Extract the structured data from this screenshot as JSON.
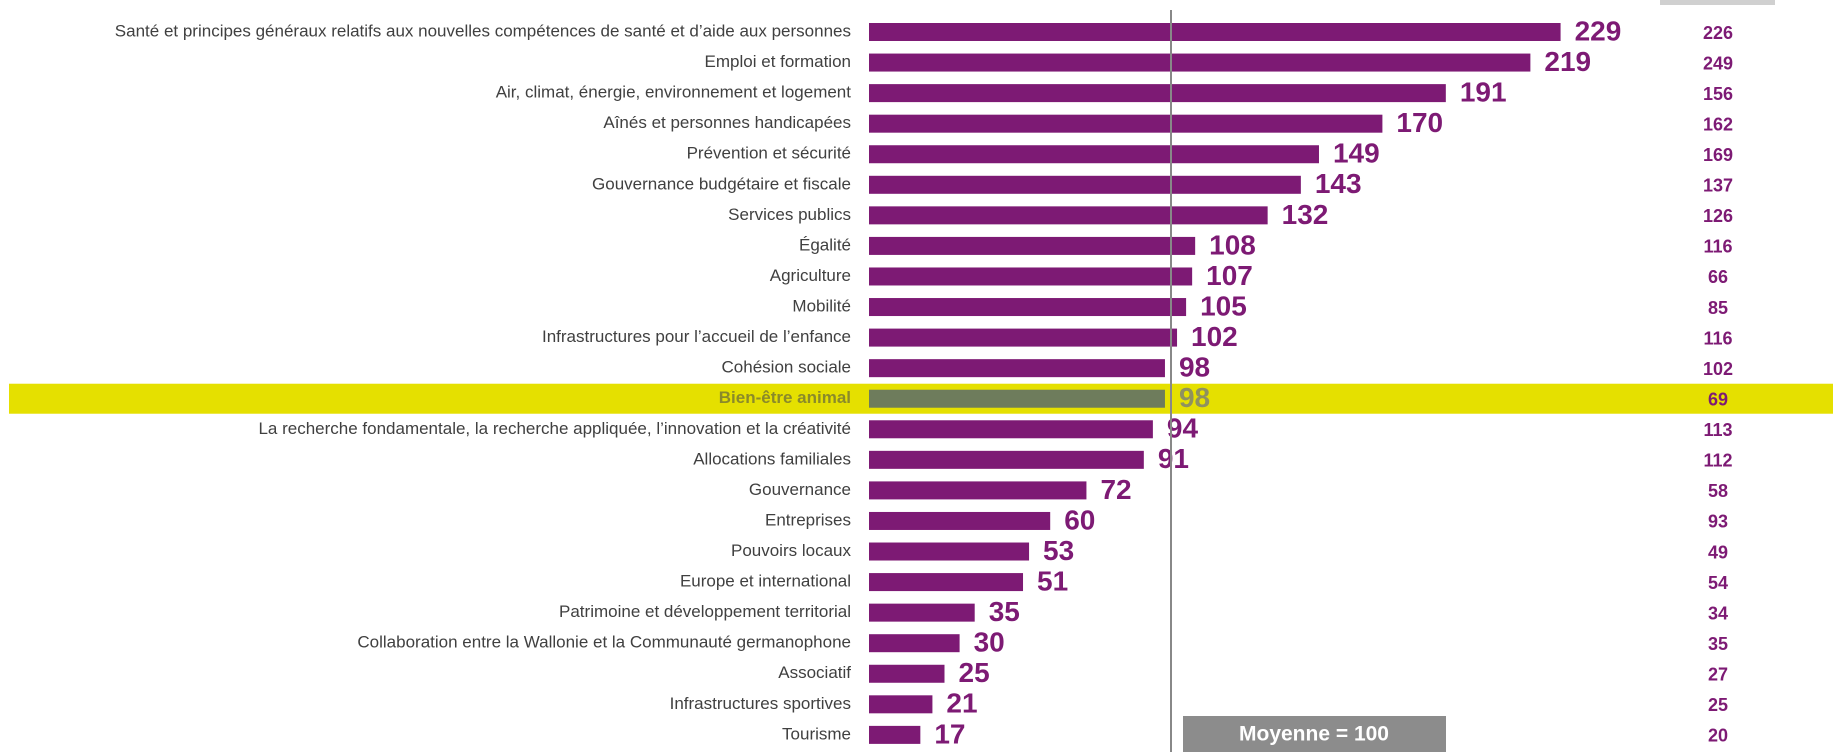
{
  "chart_data": {
    "type": "bar",
    "categories": [
      "Santé et principes généraux relatifs aux nouvelles compétences de santé et d’aide aux personnes",
      "Emploi et formation",
      "Air, climat, énergie, environnement et logement",
      "Aînés et personnes handicapées",
      "Prévention et sécurité",
      "Gouvernance budgétaire et fiscale",
      "Services publics",
      "Égalité",
      "Agriculture",
      "Mobilité",
      "Infrastructures pour l’accueil de l’enfance",
      "Cohésion sociale",
      "Bien-être animal",
      "La recherche fondamentale, la recherche appliquée, l’innovation et la créativité",
      "Allocations familiales",
      "Gouvernance",
      "Entreprises",
      "Pouvoirs locaux",
      "Europe et international",
      "Patrimoine et développement territorial",
      "Collaboration entre la Wallonie et la Communauté germanophone",
      "Associatif",
      "Infrastructures sportives",
      "Tourisme"
    ],
    "values": [
      229,
      219,
      191,
      170,
      149,
      143,
      132,
      108,
      107,
      105,
      102,
      98,
      98,
      94,
      91,
      72,
      60,
      53,
      51,
      35,
      30,
      25,
      21,
      17
    ],
    "secondary_values": [
      226,
      249,
      156,
      162,
      169,
      137,
      126,
      116,
      66,
      85,
      116,
      102,
      69,
      113,
      112,
      58,
      93,
      49,
      54,
      34,
      35,
      27,
      25,
      20
    ],
    "color": "#7d1a74",
    "highlight_index": 12,
    "highlight_color": "#6e7c5c",
    "highlight_band_color": "#e5e000",
    "reference_value": 100,
    "annotation": "Moyenne = 100",
    "xlim": [
      0,
      250
    ]
  }
}
